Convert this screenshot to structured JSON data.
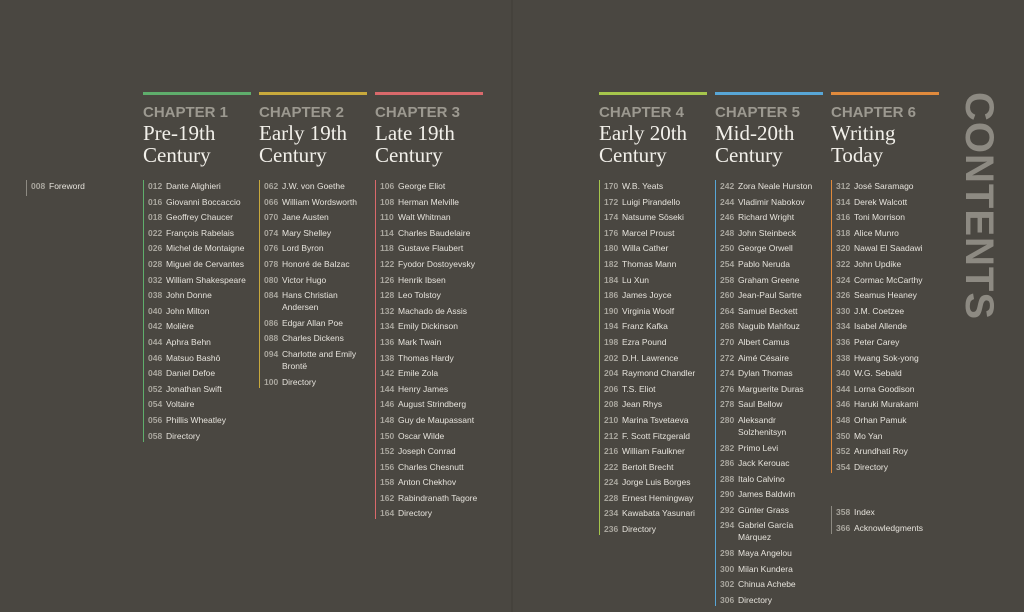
{
  "heading": "CONTENTS",
  "foreword": {
    "page": "008",
    "name": "Foreword"
  },
  "chapters": [
    {
      "label": "CHAPTER 1",
      "title": [
        "Pre-19th",
        "Century"
      ],
      "color": "#5fae6c",
      "entries": [
        {
          "page": "012",
          "name": "Dante Alighieri"
        },
        {
          "page": "016",
          "name": "Giovanni Boccaccio"
        },
        {
          "page": "018",
          "name": "Geoffrey Chaucer"
        },
        {
          "page": "022",
          "name": "François Rabelais"
        },
        {
          "page": "026",
          "name": "Michel de Montaigne"
        },
        {
          "page": "028",
          "name": "Miguel de Cervantes"
        },
        {
          "page": "032",
          "name": "William Shakespeare"
        },
        {
          "page": "038",
          "name": "John Donne"
        },
        {
          "page": "040",
          "name": "John Milton"
        },
        {
          "page": "042",
          "name": "Molière"
        },
        {
          "page": "044",
          "name": "Aphra Behn"
        },
        {
          "page": "046",
          "name": "Matsuo Bashō"
        },
        {
          "page": "048",
          "name": "Daniel Defoe"
        },
        {
          "page": "052",
          "name": "Jonathan Swift"
        },
        {
          "page": "054",
          "name": "Voltaire"
        },
        {
          "page": "056",
          "name": "Phillis  Wheatley"
        },
        {
          "page": "058",
          "name": "Directory"
        }
      ]
    },
    {
      "label": "CHAPTER 2",
      "title": [
        "Early 19th",
        "Century"
      ],
      "color": "#c8a93c",
      "entries": [
        {
          "page": "062",
          "name": "J.W. von Goethe"
        },
        {
          "page": "066",
          "name": "William Wordsworth"
        },
        {
          "page": "070",
          "name": "Jane Austen"
        },
        {
          "page": "074",
          "name": "Mary Shelley"
        },
        {
          "page": "076",
          "name": "Lord Byron"
        },
        {
          "page": "078",
          "name": "Honoré de Balzac"
        },
        {
          "page": "080",
          "name": "Victor Hugo"
        },
        {
          "page": "084",
          "name": "Hans Christian Andersen"
        },
        {
          "page": "086",
          "name": "Edgar Allan Poe"
        },
        {
          "page": "088",
          "name": "Charles Dickens"
        },
        {
          "page": "094",
          "name": "Charlotte and Emily Brontë"
        },
        {
          "page": "100",
          "name": "Directory"
        }
      ]
    },
    {
      "label": "CHAPTER 3",
      "title": [
        "Late 19th",
        "Century"
      ],
      "color": "#d9696b",
      "entries": [
        {
          "page": "106",
          "name": "George Eliot"
        },
        {
          "page": "108",
          "name": "Herman Melville"
        },
        {
          "page": "110",
          "name": "Walt Whitman"
        },
        {
          "page": "114",
          "name": "Charles Baudelaire"
        },
        {
          "page": "118",
          "name": "Gustave Flaubert"
        },
        {
          "page": "122",
          "name": "Fyodor Dostoyevsky"
        },
        {
          "page": "126",
          "name": "Henrik Ibsen"
        },
        {
          "page": "128",
          "name": "Leo Tolstoy"
        },
        {
          "page": "132",
          "name": "Machado de Assis"
        },
        {
          "page": "134",
          "name": "Emily Dickinson"
        },
        {
          "page": "136",
          "name": "Mark Twain"
        },
        {
          "page": "138",
          "name": "Thomas Hardy"
        },
        {
          "page": "142",
          "name": "Emile Zola"
        },
        {
          "page": "144",
          "name": "Henry James"
        },
        {
          "page": "146",
          "name": "August Strindberg"
        },
        {
          "page": "148",
          "name": "Guy de Maupassant"
        },
        {
          "page": "150",
          "name": "Oscar Wilde"
        },
        {
          "page": "152",
          "name": "Joseph Conrad"
        },
        {
          "page": "156",
          "name": "Charles Chesnutt"
        },
        {
          "page": "158",
          "name": "Anton Chekhov"
        },
        {
          "page": "162",
          "name": "Rabindranath Tagore"
        },
        {
          "page": "164",
          "name": "Directory"
        }
      ]
    },
    {
      "label": "CHAPTER 4",
      "title": [
        "Early 20th",
        "Century"
      ],
      "color": "#a6c64c",
      "entries": [
        {
          "page": "170",
          "name": "W.B. Yeats"
        },
        {
          "page": "172",
          "name": "Luigi Pirandello"
        },
        {
          "page": "174",
          "name": "Natsume Sōseki"
        },
        {
          "page": "176",
          "name": "Marcel Proust"
        },
        {
          "page": "180",
          "name": "Willa Cather"
        },
        {
          "page": "182",
          "name": "Thomas Mann"
        },
        {
          "page": "184",
          "name": "Lu Xun"
        },
        {
          "page": "186",
          "name": "James Joyce"
        },
        {
          "page": "190",
          "name": "Virginia Woolf"
        },
        {
          "page": "194",
          "name": "Franz Kafka"
        },
        {
          "page": "198",
          "name": "Ezra Pound"
        },
        {
          "page": "202",
          "name": "D.H. Lawrence"
        },
        {
          "page": "204",
          "name": "Raymond Chandler"
        },
        {
          "page": "206",
          "name": "T.S. Eliot"
        },
        {
          "page": "208",
          "name": "Jean Rhys"
        },
        {
          "page": "210",
          "name": "Marina Tsvetaeva"
        },
        {
          "page": "212",
          "name": "F. Scott Fitzgerald"
        },
        {
          "page": "216",
          "name": "William Faulkner"
        },
        {
          "page": "222",
          "name": "Bertolt Brecht"
        },
        {
          "page": "224",
          "name": "Jorge Luis Borges"
        },
        {
          "page": "228",
          "name": "Ernest Hemingway"
        },
        {
          "page": "234",
          "name": "Kawabata Yasunari"
        },
        {
          "page": "236",
          "name": "Directory"
        }
      ]
    },
    {
      "label": "CHAPTER 5",
      "title": [
        "Mid-20th",
        "Century"
      ],
      "color": "#58a6d6",
      "entries": [
        {
          "page": "242",
          "name": "Zora Neale Hurston"
        },
        {
          "page": "244",
          "name": "Vladimir Nabokov"
        },
        {
          "page": "246",
          "name": "Richard Wright"
        },
        {
          "page": "248",
          "name": "John Steinbeck"
        },
        {
          "page": "250",
          "name": "George Orwell"
        },
        {
          "page": "254",
          "name": "Pablo Neruda"
        },
        {
          "page": "258",
          "name": "Graham Greene"
        },
        {
          "page": "260",
          "name": "Jean-Paul Sartre"
        },
        {
          "page": "264",
          "name": "Samuel Beckett"
        },
        {
          "page": "268",
          "name": "Naguib Mahfouz"
        },
        {
          "page": "270",
          "name": "Albert Camus"
        },
        {
          "page": "272",
          "name": "Aimé Césaire"
        },
        {
          "page": "274",
          "name": "Dylan Thomas"
        },
        {
          "page": "276",
          "name": "Marguerite Duras"
        },
        {
          "page": "278",
          "name": "Saul Bellow"
        },
        {
          "page": "280",
          "name": "Aleksandr Solzhenitsyn"
        },
        {
          "page": "282",
          "name": "Primo Levi"
        },
        {
          "page": "286",
          "name": "Jack Kerouac"
        },
        {
          "page": "288",
          "name": "Italo Calvino"
        },
        {
          "page": "290",
          "name": "James Baldwin"
        },
        {
          "page": "292",
          "name": "Günter Grass"
        },
        {
          "page": "294",
          "name": "Gabriel García Márquez"
        },
        {
          "page": "298",
          "name": "Maya Angelou"
        },
        {
          "page": "300",
          "name": "Milan Kundera"
        },
        {
          "page": "302",
          "name": "Chinua Achebe"
        },
        {
          "page": "306",
          "name": "Directory"
        }
      ]
    },
    {
      "label": "CHAPTER 6",
      "title": [
        "Writing",
        "Today"
      ],
      "color": "#e08a3c",
      "entries": [
        {
          "page": "312",
          "name": "José Saramago"
        },
        {
          "page": "314",
          "name": "Derek Walcott"
        },
        {
          "page": "316",
          "name": "Toni Morrison"
        },
        {
          "page": "318",
          "name": "Alice Munro"
        },
        {
          "page": "320",
          "name": "Nawal El Saadawi"
        },
        {
          "page": "322",
          "name": "John Updike"
        },
        {
          "page": "324",
          "name": "Cormac McCarthy"
        },
        {
          "page": "326",
          "name": "Seamus Heaney"
        },
        {
          "page": "330",
          "name": "J.M. Coetzee"
        },
        {
          "page": "334",
          "name": "Isabel Allende"
        },
        {
          "page": "336",
          "name": "Peter Carey"
        },
        {
          "page": "338",
          "name": "Hwang Sok-yong"
        },
        {
          "page": "340",
          "name": "W.G. Sebald"
        },
        {
          "page": "344",
          "name": "Lorna Goodison"
        },
        {
          "page": "346",
          "name": "Haruki Murakami"
        },
        {
          "page": "348",
          "name": "Orhan Pamuk"
        },
        {
          "page": "350",
          "name": "Mo Yan"
        },
        {
          "page": "352",
          "name": "Arundhati Roy"
        },
        {
          "page": "354",
          "name": "Directory"
        }
      ]
    }
  ],
  "back_matter": [
    {
      "page": "358",
      "name": "Index"
    },
    {
      "page": "366",
      "name": "Acknowledgments"
    }
  ]
}
